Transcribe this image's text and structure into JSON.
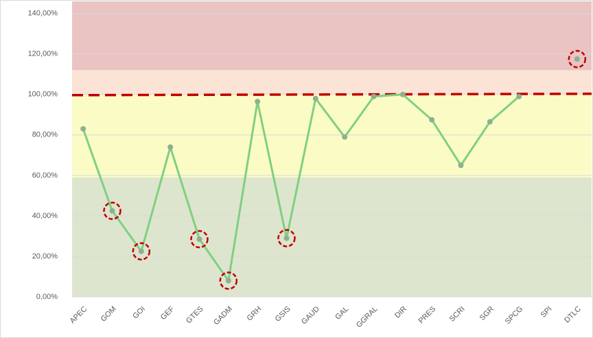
{
  "chart_data": {
    "type": "line",
    "categories": [
      "APEC",
      "GOM",
      "GOI",
      "GEF",
      "GTES",
      "GADM",
      "GRH",
      "GSIS",
      "GAUD",
      "GAL",
      "GGRAL",
      "DIR",
      "PRES",
      "SCRI",
      "SGR",
      "SPCG",
      "SPI",
      "DTLC"
    ],
    "series": [
      {
        "color": "#7fd07f",
        "marker_color": "#8fb08f",
        "values": [
          83,
          42.5,
          22.5,
          74,
          28.5,
          8,
          96.5,
          29,
          98,
          79,
          99,
          100,
          87.5,
          65,
          86.5,
          99,
          null,
          117.5
        ]
      }
    ],
    "ylim": [
      0,
      146
    ],
    "yticks": [
      {
        "value": 0,
        "label": "0,00%"
      },
      {
        "value": 20,
        "label": "20,00%"
      },
      {
        "value": 40,
        "label": "40,00%"
      },
      {
        "value": 60,
        "label": "60,00%"
      },
      {
        "value": 80,
        "label": "80,00%"
      },
      {
        "value": 100,
        "label": "100,00%"
      },
      {
        "value": 120,
        "label": "120,00%"
      },
      {
        "value": 140,
        "label": "140,00%"
      }
    ],
    "grid": true,
    "bands": [
      {
        "from": 0,
        "to": 59,
        "color": "#dde5cf"
      },
      {
        "from": 59,
        "to": 100,
        "color": "#fbfbc6"
      },
      {
        "from": 100,
        "to": 112,
        "color": "#fbe3d6"
      },
      {
        "from": 112,
        "to": 146,
        "color": "#eac3c3"
      }
    ],
    "target": 100,
    "target_color": "#c00000",
    "highlight": [
      1,
      2,
      4,
      5,
      7,
      17
    ]
  }
}
